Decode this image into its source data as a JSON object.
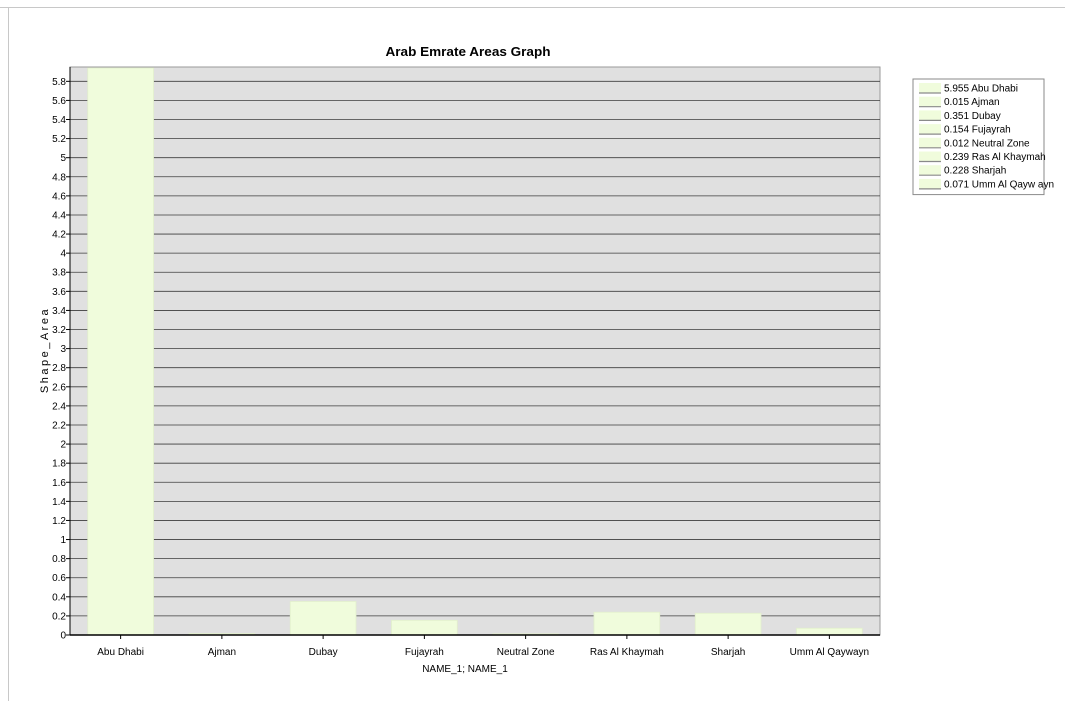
{
  "chart_data": {
    "type": "bar",
    "title": "Arab Emrate  Areas Graph",
    "xlabel": "NAME_1; NAME_1",
    "ylabel": "Shape_Area",
    "ylim": [
      0,
      5.95
    ],
    "ytick_step": 0.2,
    "categories": [
      "Abu Dhabi",
      "Ajman",
      "Dubay",
      "Fujayrah",
      "Neutral Zone",
      "Ras Al Khaymah",
      "Sharjah",
      "Umm Al Qaywayn"
    ],
    "values": [
      5.955,
      0.015,
      0.351,
      0.154,
      0.012,
      0.239,
      0.228,
      0.071
    ],
    "legend": [
      "5.955 Abu Dhabi",
      "0.015 Ajman",
      "0.351 Dubay",
      "0.154 Fujayrah",
      "0.012 Neutral Zone",
      "0.239 Ras Al Khaymah",
      "0.228 Sharjah",
      "0.071 Umm Al Qayw ayn"
    ],
    "legend_position": "top-right",
    "grid": true,
    "colors": {
      "bar": "#f0fcdc",
      "bar_stroke": "#e2efcc",
      "plot_bg": "#e0e0e0",
      "grid": "#3c3c3c"
    }
  }
}
